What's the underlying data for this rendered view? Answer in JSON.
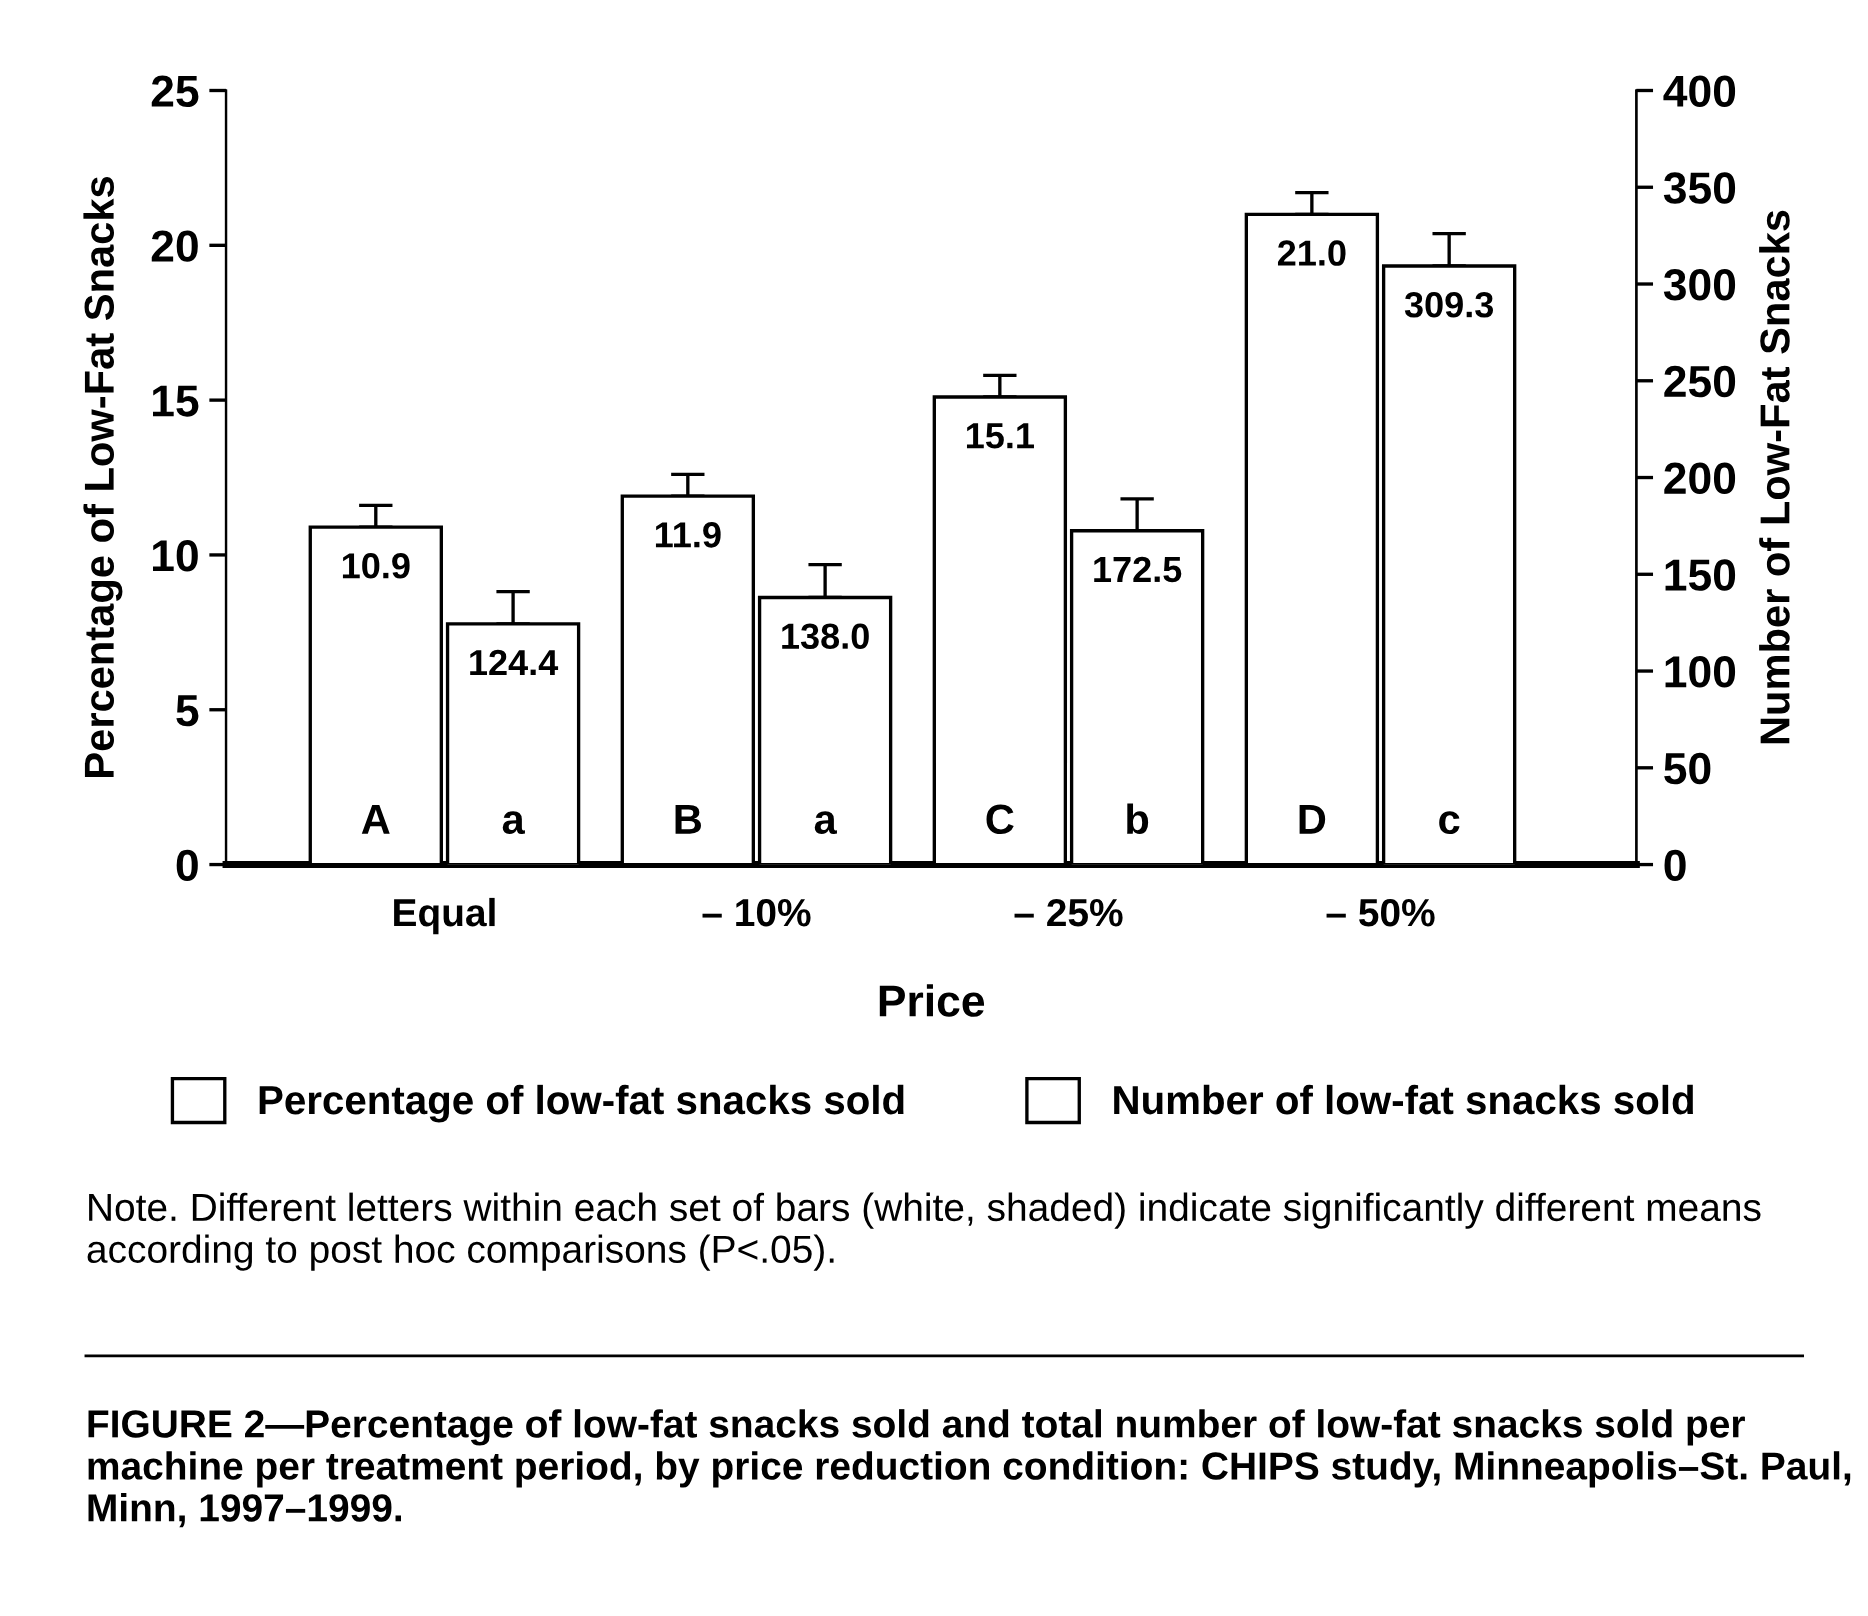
{
  "chart_data": {
    "type": "bar",
    "categories": [
      "Equal",
      "– 10%",
      "– 25%",
      "– 50%"
    ],
    "xlabel": "Price",
    "ylabel": "Percentage of Low-Fat Snacks",
    "y2label": "Number of Low-Fat Snacks",
    "series": [
      {
        "name": "Percentage of low-fat snacks sold",
        "color": "#ffffff",
        "values": [
          10.9,
          11.9,
          15.1,
          21.0
        ],
        "value_labels": [
          "10.9",
          "11.9",
          "15.1",
          "21.0"
        ],
        "errors": [
          [
            10.9,
            11.6
          ],
          [
            11.9,
            12.6
          ],
          [
            15.1,
            15.8
          ],
          [
            21.0,
            21.7
          ]
        ]
      },
      {
        "name": "Number of low-fat snacks sold",
        "color": "#ffffff",
        "axis": "y2",
        "values": [
          124.4,
          138.0,
          172.5,
          309.3
        ],
        "value_labels": [
          "124.4",
          "138.0",
          "172.5",
          "309.3"
        ],
        "errors": [
          [
            124.4,
            141
          ],
          [
            138.0,
            155
          ],
          [
            172.5,
            189
          ],
          [
            309.3,
            326
          ]
        ]
      }
    ],
    "ylim": [
      0,
      25
    ],
    "yticks": [
      0,
      5,
      10,
      15,
      20,
      25
    ],
    "y2lim": [
      0,
      400
    ],
    "y2ticks": [
      0,
      50,
      100,
      150,
      200,
      250,
      300,
      350,
      400
    ],
    "grid": false,
    "legend": "bottom",
    "annotations": [
      "A",
      "a",
      "B",
      "a",
      "C",
      "b",
      "D",
      "c",
      "Note. Different letters within each set of bars (white, shaded) indicate significantly different means according to post hoc comparisons (P<.05).",
      "FIGURE 2—Percentage of low-fat snacks sold and total number of low-fat snacks sold per machine per treatment period, by price reduction condition: CHIPS study, Minneapolis–St. Paul, Minn, 1997–1999."
    ]
  }
}
